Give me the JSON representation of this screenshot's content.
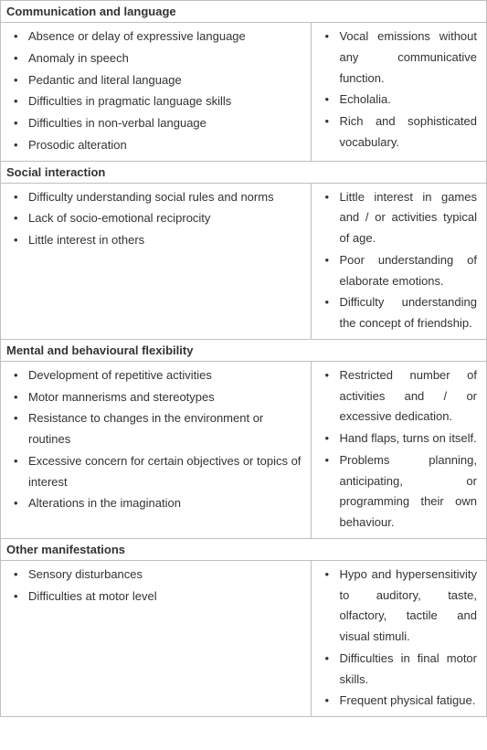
{
  "sections": [
    {
      "header": "Communication and language",
      "left": [
        "Absence or delay of expressive language",
        "Anomaly in speech",
        "Pedantic and literal language",
        "Difficulties in pragmatic language skills",
        "Difficulties in non-verbal language",
        "Prosodic alteration"
      ],
      "right": [
        "Vocal emissions without any communicative function.",
        "Echolalia.",
        "Rich and sophisticated vocabulary."
      ]
    },
    {
      "header": "Social interaction",
      "left": [
        "Difficulty understanding social rules and norms",
        "Lack of socio-emotional reciprocity",
        "Little interest in others"
      ],
      "right": [
        "Little interest in games and / or activities typical of age.",
        "Poor understanding of elaborate emotions.",
        "Difficulty understanding the concept of friendship."
      ]
    },
    {
      "header": "Mental and behavioural flexibility",
      "left": [
        "Development of repetitive activities",
        "Motor mannerisms and stereotypes",
        "Resistance to changes in the environment or routines",
        "Excessive concern for certain objectives or topics of interest",
        "Alterations in the imagination"
      ],
      "right": [
        "Restricted number of activities and / or excessive dedication.",
        "Hand flaps, turns on itself.",
        "Problems planning, anticipating, or programming their own behaviour."
      ]
    },
    {
      "header": "Other manifestations",
      "left": [
        "Sensory disturbances",
        "Difficulties at motor level"
      ],
      "right": [
        "Hypo and hypersensitivity to auditory, taste, olfactory, tactile and visual stimuli.",
        "Difficulties in final motor skills.",
        "Frequent physical fatigue."
      ]
    }
  ]
}
